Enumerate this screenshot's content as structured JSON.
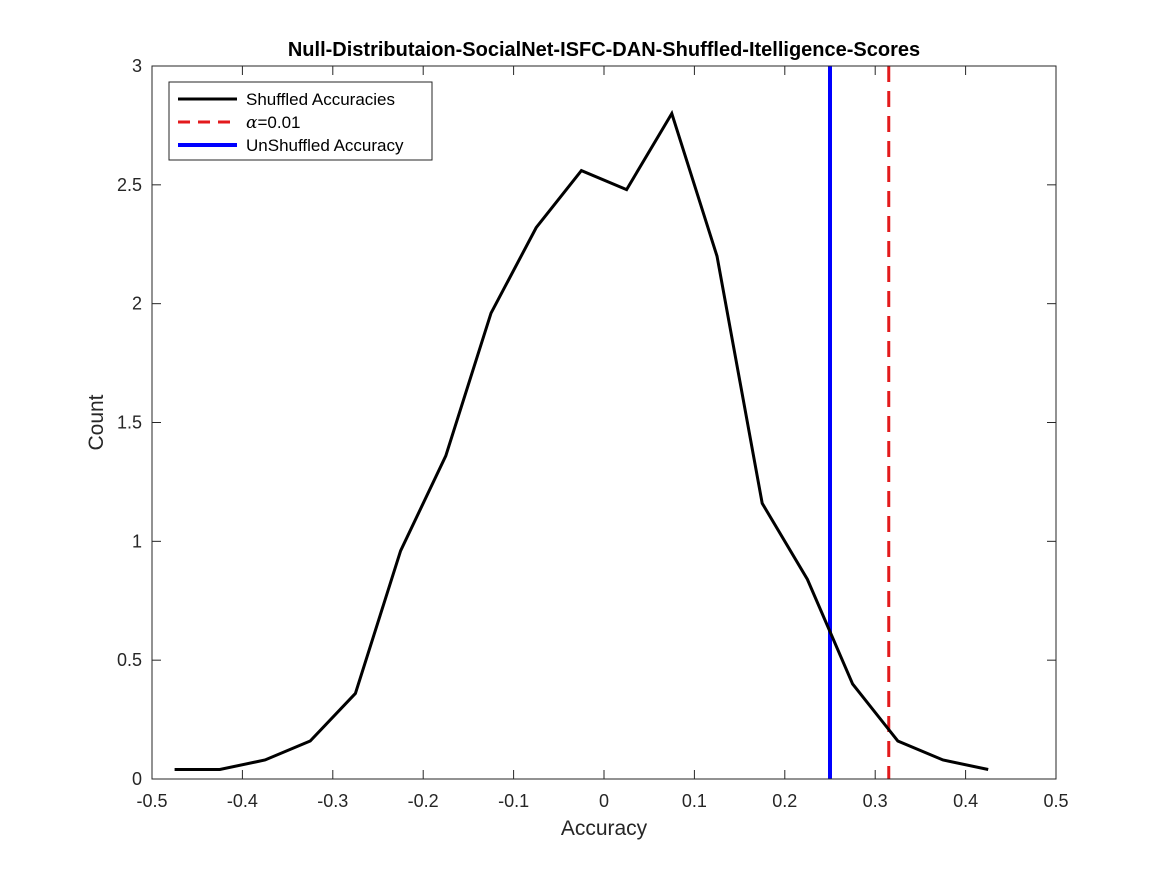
{
  "chart_data": {
    "type": "line",
    "title": "Null-Distributaion-SocialNet-ISFC-DAN-Shuffled-Itelligence-Scores",
    "xlabel": "Accuracy",
    "ylabel": "Count",
    "xlim": [
      -0.5,
      0.5
    ],
    "ylim": [
      0,
      3
    ],
    "xticks": [
      -0.5,
      -0.4,
      -0.3,
      -0.2,
      -0.1,
      0,
      0.1,
      0.2,
      0.3,
      0.4,
      0.5
    ],
    "xtick_labels": [
      "-0.5",
      "-0.4",
      "-0.3",
      "-0.2",
      "-0.1",
      "0",
      "0.1",
      "0.2",
      "0.3",
      "0.4",
      "0.5"
    ],
    "yticks": [
      0,
      0.5,
      1,
      1.5,
      2,
      2.5,
      3
    ],
    "ytick_labels": [
      "0",
      "0.5",
      "1",
      "1.5",
      "2",
      "2.5",
      "3"
    ],
    "grid": false,
    "legend_position": "top-left",
    "series": [
      {
        "name": "Shuffled Accuracies",
        "color": "#000000",
        "style": "solid",
        "x": [
          -0.475,
          -0.425,
          -0.375,
          -0.325,
          -0.275,
          -0.225,
          -0.175,
          -0.125,
          -0.075,
          -0.025,
          0.025,
          0.075,
          0.125,
          0.175,
          0.225,
          0.275,
          0.325,
          0.375,
          0.425
        ],
        "values": [
          0.04,
          0.04,
          0.08,
          0.16,
          0.36,
          0.96,
          1.36,
          1.96,
          2.32,
          2.56,
          2.48,
          2.8,
          2.2,
          1.16,
          0.84,
          0.4,
          0.16,
          0.08,
          0.04
        ]
      }
    ],
    "vlines": [
      {
        "name": "α=0.01",
        "legend_symbol": "α",
        "legend_rest": "=0.01",
        "x": 0.315,
        "color": "#e31a1c",
        "style": "dashed"
      },
      {
        "name": "UnShuffled Accuracy",
        "x": 0.25,
        "color": "#0000ff",
        "style": "solid"
      }
    ]
  }
}
